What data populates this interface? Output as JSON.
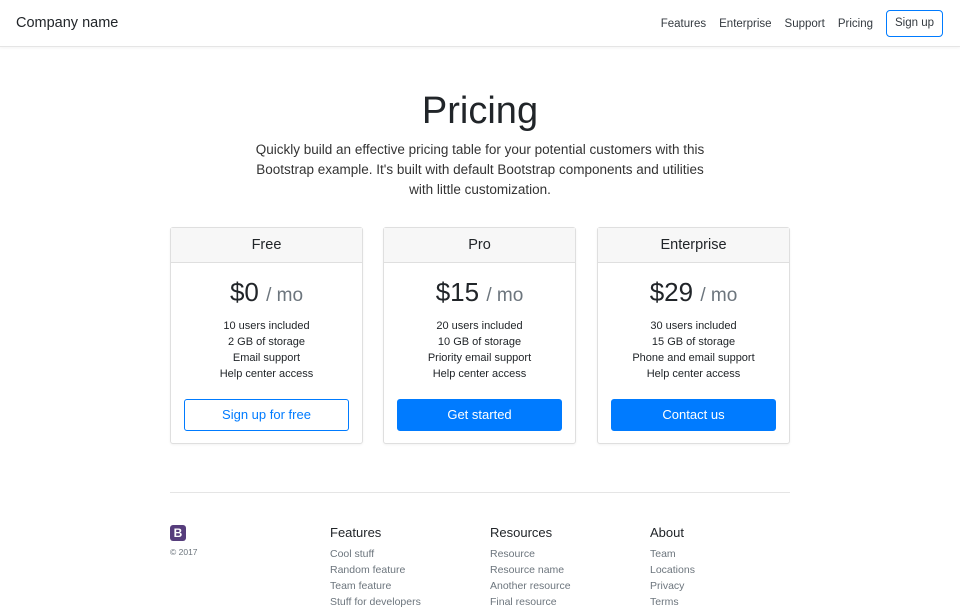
{
  "header": {
    "brand": "Company name",
    "links": [
      "Features",
      "Enterprise",
      "Support",
      "Pricing"
    ],
    "signup": "Sign up"
  },
  "hero": {
    "title": "Pricing",
    "lead": "Quickly build an effective pricing table for your potential customers with this Bootstrap example. It's built with default Bootstrap components and utilities with little customization."
  },
  "plans": [
    {
      "name": "Free",
      "price": "$0",
      "period": "/ mo",
      "features": [
        "10 users included",
        "2 GB of storage",
        "Email support",
        "Help center access"
      ],
      "button": "Sign up for free"
    },
    {
      "name": "Pro",
      "price": "$15",
      "period": "/ mo",
      "features": [
        "20 users included",
        "10 GB of storage",
        "Priority email support",
        "Help center access"
      ],
      "button": "Get started"
    },
    {
      "name": "Enterprise",
      "price": "$29",
      "period": "/ mo",
      "features": [
        "30 users included",
        "15 GB of storage",
        "Phone and email support",
        "Help center access"
      ],
      "button": "Contact us"
    }
  ],
  "footer": {
    "logo": "B",
    "copyright": "© 2017",
    "columns": [
      {
        "title": "Features",
        "links": [
          "Cool stuff",
          "Random feature",
          "Team feature",
          "Stuff for developers"
        ]
      },
      {
        "title": "Resources",
        "links": [
          "Resource",
          "Resource name",
          "Another resource",
          "Final resource"
        ]
      },
      {
        "title": "About",
        "links": [
          "Team",
          "Locations",
          "Privacy",
          "Terms"
        ]
      }
    ]
  },
  "colors": {
    "primary": "#007bff",
    "logo": "#563d7c"
  }
}
